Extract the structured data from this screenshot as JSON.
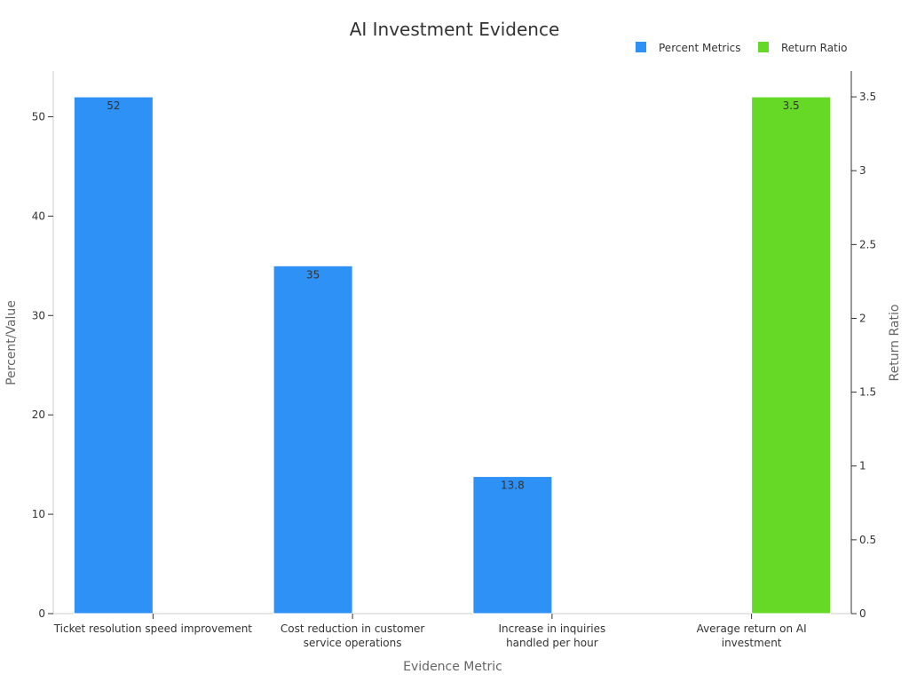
{
  "chart_data": {
    "type": "bar",
    "title": "AI Investment Evidence",
    "xlabel": "Evidence Metric",
    "ylabel": "Percent/Value",
    "y2label": "Return Ratio",
    "categories": [
      [
        "Ticket resolution speed improvement"
      ],
      [
        "Cost reduction in customer",
        "service operations"
      ],
      [
        "Increase in inquiries",
        "handled per hour"
      ],
      [
        "Average return on AI",
        "investment"
      ]
    ],
    "series": [
      {
        "name": "Percent Metrics",
        "axis": "left",
        "color": "#2e91f5",
        "values": [
          52,
          35,
          13.8,
          null
        ],
        "labels": [
          "52",
          "35",
          "13.8",
          ""
        ]
      },
      {
        "name": "Return Ratio",
        "axis": "right",
        "color": "#66d926",
        "values": [
          null,
          null,
          null,
          3.5
        ],
        "labels": [
          "",
          "",
          "",
          "3.5"
        ]
      }
    ],
    "ylim": [
      0,
      54.6
    ],
    "yticks": [
      "0",
      "10",
      "20",
      "30",
      "40",
      "50"
    ],
    "y2lim": [
      0,
      3.675
    ],
    "y2ticks": [
      "0",
      "0.5",
      "1",
      "1.5",
      "2",
      "2.5",
      "3",
      "3.5"
    ],
    "legend_position": "top-right",
    "grid": false
  }
}
